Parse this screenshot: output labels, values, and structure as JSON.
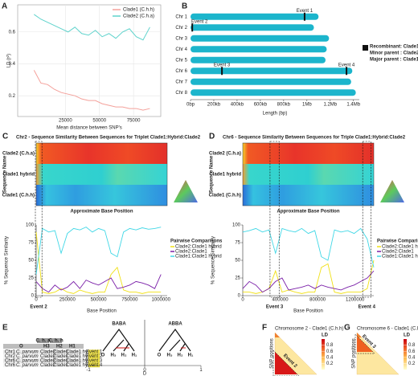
{
  "panel_labels": [
    "A",
    "B",
    "C",
    "D",
    "E",
    "F",
    "G"
  ],
  "chart_data": [
    {
      "type": "line",
      "ylabel": "LD (r²)",
      "xlabel": "Mean distance between SNP's",
      "x": [
        2000,
        7000,
        12000,
        17000,
        22000,
        27000,
        32000,
        37000,
        42000,
        47000,
        52000,
        57000,
        62000,
        67000,
        72000,
        77000,
        82000,
        87000
      ],
      "series": [
        {
          "name": "Clade1 (C.h.h)",
          "color": "#f4a09a",
          "values": [
            0.36,
            0.28,
            0.27,
            0.24,
            0.22,
            0.21,
            0.2,
            0.18,
            0.17,
            0.17,
            0.15,
            0.14,
            0.13,
            0.13,
            0.12,
            0.12,
            0.11,
            0.12
          ]
        },
        {
          "name": "Clade2 (C.h.a)",
          "color": "#5fd3cc",
          "values": [
            0.71,
            0.68,
            0.66,
            0.64,
            0.62,
            0.6,
            0.63,
            0.59,
            0.58,
            0.61,
            0.57,
            0.59,
            0.56,
            0.6,
            0.62,
            0.57,
            0.55,
            0.63
          ]
        }
      ],
      "xlim": [
        -10000,
        95000
      ],
      "xticks": [
        25000,
        50000,
        75000
      ],
      "ylim": [
        0.07,
        0.77
      ],
      "yticks": [
        0.2,
        0.4,
        0.6
      ],
      "grid": true,
      "legend": "top-right"
    },
    {
      "type": "bar",
      "orientation": "horizontal",
      "xlabel": "Length (bp)",
      "categories": [
        "Chr 1",
        "Chr 2",
        "Chr 3",
        "Chr 4",
        "Chr 5",
        "Chr 6",
        "Chr 7",
        "Chr 8"
      ],
      "values": [
        1100000,
        1060000,
        1190000,
        1170000,
        1160000,
        1390000,
        1380000,
        1420000
      ],
      "color": "#1cb5cc",
      "xlim": [
        0,
        1450000
      ],
      "xticks": [
        {
          "value": 0,
          "label": "0bp"
        },
        {
          "value": 200000,
          "label": "200kb"
        },
        {
          "value": 400000,
          "label": "400kb"
        },
        {
          "value": 600000,
          "label": "600kb"
        },
        {
          "value": 800000,
          "label": "800kb"
        },
        {
          "value": 1000000,
          "label": "1Mb"
        },
        {
          "value": 1200000,
          "label": "1.2Mb"
        },
        {
          "value": 1400000,
          "label": "1.4Mb"
        }
      ],
      "events": [
        {
          "label": "Event 1",
          "chromosome": "Chr 1",
          "position": 980000
        },
        {
          "label": "Event 2",
          "chromosome": "Chr 2",
          "position": 15000
        },
        {
          "label": "Event 3",
          "chromosome": "Chr 6",
          "position": 270000
        },
        {
          "label": "Event 4",
          "chromosome": "Chr 6",
          "position": 1340000
        }
      ],
      "legend": {
        "marker_color": "#111111",
        "entries": [
          "Recombinant: Clade1 hybrid",
          "Minor parent : Clade2 (C.h.a)",
          "Major parent : Clade1 (C.h.h)"
        ]
      }
    },
    {
      "type": "line",
      "title": "Chr2 - Sequence Similarity Between Sequences for Triplet Clade1:Hybrid:Clade2",
      "heatmap_ylabel": "Sequence Name",
      "heatmap_rows": [
        "Clade2 (C.h.a)",
        "Clade1 hybrid",
        "Clade1 (C.h.h)"
      ],
      "heatmap_xlabel": "Approximate Base Position",
      "ylabel": "% Sequence Similarity",
      "xlabel": "Base Position",
      "legend_title": "Pairwise Comparisons",
      "x": [
        0,
        50000,
        100000,
        150000,
        200000,
        250000,
        300000,
        350000,
        400000,
        450000,
        500000,
        550000,
        600000,
        650000,
        700000,
        750000,
        800000,
        850000,
        900000,
        950000,
        1000000
      ],
      "series": [
        {
          "name": "Clade2:Clade1 hybrid",
          "color": "#f0e014",
          "values": [
            90,
            5,
            3,
            5,
            10,
            5,
            3,
            8,
            5,
            3,
            5,
            5,
            30,
            40,
            8,
            5,
            5,
            3,
            5,
            5,
            5
          ]
        },
        {
          "name": "Clade2:Clade1",
          "color": "#7a1fa8",
          "values": [
            20,
            10,
            5,
            15,
            8,
            12,
            20,
            10,
            22,
            18,
            15,
            20,
            25,
            10,
            12,
            15,
            20,
            18,
            15,
            10,
            30
          ]
        },
        {
          "name": "Clade1:Clade1 hybrid",
          "color": "#3fd7e6",
          "values": [
            30,
            95,
            90,
            92,
            60,
            88,
            95,
            93,
            97,
            90,
            95,
            92,
            60,
            55,
            90,
            95,
            93,
            96,
            94,
            95,
            97
          ]
        }
      ],
      "xlim": [
        0,
        1050000
      ],
      "xticks": [
        0,
        250000,
        500000,
        750000,
        1000000
      ],
      "ylim": [
        0,
        100
      ],
      "yticks": [
        0,
        25,
        50,
        75,
        100
      ],
      "events": [
        {
          "label": "Event 2",
          "start": 0,
          "end": 40000
        }
      ]
    },
    {
      "type": "line",
      "title": "Chr6 - Sequence Similarity Between Sequences for Triple Clade1:Hybrid:Clade2",
      "heatmap_ylabel": "Sequence Name",
      "heatmap_rows": [
        "Clade2 (C.h.a)",
        "Clade1 hybrid",
        "Clade1 (C.h.h)"
      ],
      "heatmap_xlabel": "Approximate Base Position",
      "ylabel": "% Sequence Similarity",
      "xlabel": "Base Position",
      "legend_title": "Pairwise Comparisons",
      "x": [
        0,
        70000,
        140000,
        210000,
        280000,
        350000,
        420000,
        490000,
        560000,
        630000,
        700000,
        770000,
        840000,
        910000,
        980000,
        1050000,
        1120000,
        1190000,
        1260000,
        1330000,
        1400000
      ],
      "series": [
        {
          "name": "Clade2:Clade1 hybrid",
          "color": "#f0e014",
          "values": [
            5,
            5,
            3,
            5,
            10,
            35,
            5,
            8,
            5,
            3,
            5,
            5,
            40,
            45,
            5,
            3,
            5,
            5,
            5,
            10,
            50
          ]
        },
        {
          "name": "Clade2:Clade1",
          "color": "#7a1fa8",
          "values": [
            10,
            20,
            15,
            5,
            10,
            20,
            25,
            8,
            10,
            12,
            15,
            10,
            15,
            12,
            10,
            8,
            12,
            15,
            20,
            25,
            35
          ]
        },
        {
          "name": "Clade1:Clade1 hybrid",
          "color": "#3fd7e6",
          "values": [
            90,
            92,
            95,
            90,
            93,
            60,
            95,
            92,
            90,
            95,
            88,
            92,
            55,
            50,
            93,
            90,
            92,
            88,
            95,
            80,
            40
          ]
        }
      ],
      "xlim": [
        0,
        1400000
      ],
      "xticks": [
        0,
        400000,
        800000,
        1200000
      ],
      "ylim": [
        0,
        100
      ],
      "yticks": [
        0,
        25,
        50,
        75,
        100
      ],
      "events": [
        {
          "label": "Event 3",
          "start": 300000,
          "end": 380000
        },
        {
          "label": "Event 4",
          "start": 1290000,
          "end": 1360000
        }
      ]
    }
  ],
  "panel_e": {
    "trees": [
      "BABA",
      "ABBA"
    ],
    "leaves": [
      "O",
      "H₃",
      "H₂",
      "H₁"
    ],
    "group_headers": [
      "C. h. a",
      "C. h. h"
    ],
    "columns": [
      "O",
      "H3",
      "H2",
      "H1"
    ],
    "rows": [
      [
        "Chr1",
        "C. parvum",
        "Clade2",
        "Clade1",
        "Clade1 hybrid"
      ],
      [
        "Chr2",
        "C. parvum",
        "Clade2",
        "Clade1",
        "Clade1 hybrid"
      ],
      [
        "Chr6",
        "C. parvum",
        "Clade2",
        "Clade1",
        "Clade1 hybrid"
      ],
      [
        "Chr6",
        "C. parvum",
        "Clade2",
        "Clade1",
        "Clade1 hybrid"
      ]
    ],
    "events": [
      {
        "label": "Event 1",
        "D": -1
      },
      {
        "label": "Event 2",
        "D": -1
      },
      {
        "label": "Event 3",
        "D": -1
      },
      {
        "label": "Event 4",
        "D": -1
      }
    ],
    "xlim": [
      -1,
      1
    ],
    "xticks": [
      -1,
      0,
      1
    ],
    "xlabel": "D"
  },
  "ld_maps": [
    {
      "title": "Chromosome 2 - Clade1 (C.h.h)",
      "ylabel": "SNP positions",
      "event": "Event 2"
    },
    {
      "title": "Chromosome 6 - Clade1 (C.h.h)",
      "ylabel": "SNP positions",
      "event": "Event 3"
    }
  ],
  "ld_legend": {
    "title": "LD",
    "lim": [
      0,
      1
    ],
    "ticks": [
      0.2,
      0.4,
      0.6,
      0.8
    ]
  }
}
